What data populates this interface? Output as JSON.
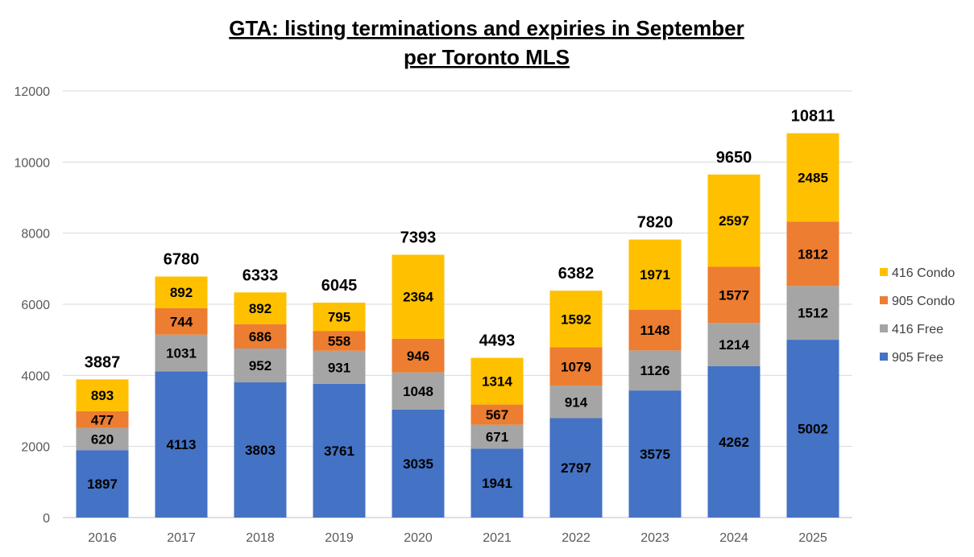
{
  "chart_data": {
    "type": "bar",
    "stacked": true,
    "title": "GTA: listing terminations and expiries in September",
    "subtitle": "per Toronto MLS",
    "xlabel": "",
    "ylabel": "",
    "ylim": [
      0,
      12000
    ],
    "yticks": [
      0,
      2000,
      4000,
      6000,
      8000,
      10000,
      12000
    ],
    "grid": true,
    "legend_position": "right",
    "categories": [
      "2016",
      "2017",
      "2018",
      "2019",
      "2020",
      "2021",
      "2022",
      "2023",
      "2024",
      "2025"
    ],
    "series": [
      {
        "name": "905 Free",
        "color": "#4472C4",
        "values": [
          1897,
          4113,
          3803,
          3761,
          3035,
          1941,
          2797,
          3575,
          4262,
          5002
        ]
      },
      {
        "name": "416 Free",
        "color": "#A5A5A5",
        "values": [
          620,
          1031,
          952,
          931,
          1048,
          671,
          914,
          1126,
          1214,
          1512
        ]
      },
      {
        "name": "905 Condo",
        "color": "#ED7D31",
        "values": [
          477,
          744,
          686,
          558,
          946,
          567,
          1079,
          1148,
          1577,
          1812
        ]
      },
      {
        "name": "416 Condo",
        "color": "#FFC000",
        "values": [
          893,
          892,
          892,
          795,
          2364,
          1314,
          1592,
          1971,
          2597,
          2485
        ]
      }
    ],
    "totals": [
      3887,
      6780,
      6333,
      6045,
      7393,
      4493,
      6382,
      7820,
      9650,
      10811
    ],
    "legend_order": [
      "416 Condo",
      "905 Condo",
      "416 Free",
      "905 Free"
    ]
  }
}
